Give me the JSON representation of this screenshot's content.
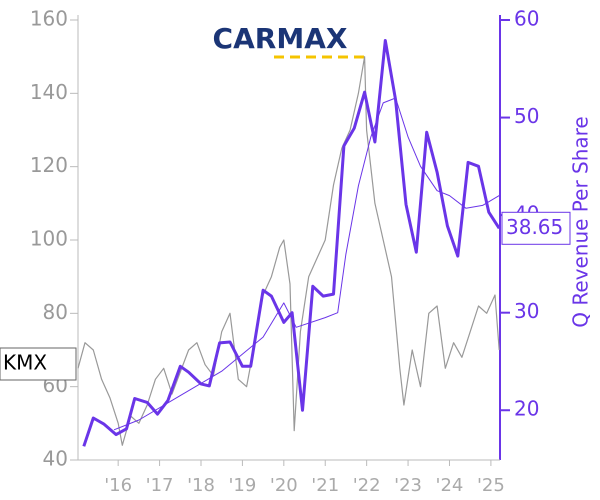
{
  "chart_data": {
    "type": "line",
    "logo_text": "CARMAX",
    "ticker": "KMX",
    "y2_label": "Q Revenue Per Share",
    "xlim": [
      2015.03,
      2025.22
    ],
    "xticks": [
      {
        "value": 2016,
        "label": "'16"
      },
      {
        "value": 2017,
        "label": "'17"
      },
      {
        "value": 2018,
        "label": "'18"
      },
      {
        "value": 2019,
        "label": "'19"
      },
      {
        "value": 2020,
        "label": "'20"
      },
      {
        "value": 2021,
        "label": "'21"
      },
      {
        "value": 2022,
        "label": "'22"
      },
      {
        "value": 2023,
        "label": "'23"
      },
      {
        "value": 2024,
        "label": "'24"
      },
      {
        "value": 2025,
        "label": "'25"
      }
    ],
    "ylim": [
      40,
      160
    ],
    "yticks": [
      40,
      60,
      80,
      100,
      120,
      140,
      160
    ],
    "y2lim": [
      14.9,
      60
    ],
    "y2ticks": [
      20,
      30,
      40,
      50,
      60
    ],
    "series": [
      {
        "color": "#999999",
        "axis": "y",
        "x": [
          2015.03,
          2015.2,
          2015.4,
          2015.6,
          2015.8,
          2016.0,
          2016.1,
          2016.3,
          2016.5,
          2016.7,
          2016.9,
          2017.1,
          2017.3,
          2017.5,
          2017.7,
          2017.9,
          2018.1,
          2018.3,
          2018.5,
          2018.7,
          2018.9,
          2019.1,
          2019.3,
          2019.5,
          2019.7,
          2019.9,
          2020.0,
          2020.15,
          2020.25,
          2020.4,
          2020.6,
          2020.8,
          2021.0,
          2021.2,
          2021.4,
          2021.6,
          2021.8,
          2021.95,
          2022.0,
          2022.2,
          2022.4,
          2022.6,
          2022.8,
          2022.9,
          2023.1,
          2023.3,
          2023.5,
          2023.7,
          2023.9,
          2024.1,
          2024.3,
          2024.5,
          2024.7,
          2024.9,
          2025.1,
          2025.2
        ],
        "values": [
          65,
          72,
          70,
          62,
          57,
          50,
          44,
          52,
          50,
          55,
          62,
          65,
          58,
          64,
          70,
          72,
          66,
          63,
          75,
          80,
          62,
          60,
          72,
          85,
          90,
          98,
          100,
          88,
          48,
          75,
          90,
          95,
          100,
          115,
          125,
          130,
          140,
          150,
          130,
          110,
          100,
          90,
          65,
          55,
          70,
          60,
          80,
          82,
          65,
          72,
          68,
          75,
          82,
          80,
          85,
          70
        ]
      },
      {
        "color": "#6a35e8",
        "axis": "y2",
        "x": [
          2015.17,
          2015.4,
          2015.65,
          2015.95,
          2016.2,
          2016.4,
          2016.7,
          2016.95,
          2017.2,
          2017.5,
          2017.7,
          2018.0,
          2018.2,
          2018.45,
          2018.7,
          2019.0,
          2019.2,
          2019.5,
          2019.7,
          2020.0,
          2020.2,
          2020.45,
          2020.7,
          2020.95,
          2021.2,
          2021.45,
          2021.7,
          2021.95,
          2022.2,
          2022.45,
          2022.7,
          2022.95,
          2023.2,
          2023.45,
          2023.7,
          2023.95,
          2024.2,
          2024.45,
          2024.7,
          2024.95,
          2025.2
        ],
        "values": [
          16.3,
          19.2,
          18.6,
          17.5,
          18.1,
          21.2,
          20.8,
          19.6,
          21,
          24.5,
          23.9,
          22.7,
          22.5,
          26.9,
          27,
          24.5,
          24.5,
          32.3,
          31.7,
          29,
          30,
          20,
          32.7,
          31.7,
          31.9,
          47.1,
          48.9,
          52.6,
          47.5,
          57.9,
          51.8,
          41.1,
          36.2,
          48.5,
          44.4,
          38.9,
          35.8,
          45.4,
          45,
          40.3,
          38.65
        ]
      },
      {
        "color": "#6a35e8",
        "axis": "y2",
        "x": [
          2015.9,
          2016.5,
          2017.5,
          2018.5,
          2019.5,
          2020.0,
          2020.3,
          2021.0,
          2021.3,
          2021.5,
          2021.8,
          2022.1,
          2022.4,
          2022.7,
          2023.0,
          2023.3,
          2023.7,
          2024.0,
          2024.4,
          2024.8,
          2025.2
        ],
        "values": [
          18,
          19,
          21.5,
          24,
          27.5,
          31,
          28.5,
          29.5,
          30,
          36,
          43,
          48,
          51.5,
          52,
          48,
          45,
          42.5,
          42,
          40.7,
          41,
          42
        ]
      }
    ]
  }
}
